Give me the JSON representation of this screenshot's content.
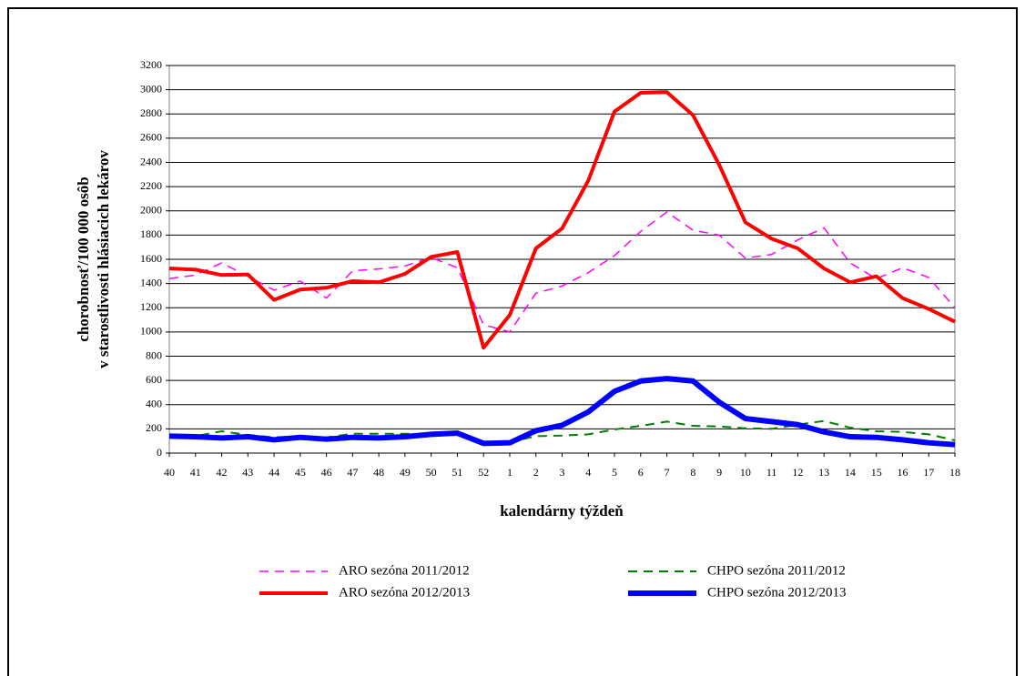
{
  "chart_data": {
    "type": "line",
    "xlabel": "kalendárny týždeň",
    "ylabel": [
      "chorobnosť/100 000 osôb",
      "v starostlivosti hlásiacich lekárov"
    ],
    "categories": [
      "40",
      "41",
      "42",
      "43",
      "44",
      "45",
      "46",
      "47",
      "48",
      "49",
      "50",
      "51",
      "52",
      "1",
      "2",
      "3",
      "4",
      "5",
      "6",
      "7",
      "8",
      "9",
      "10",
      "11",
      "12",
      "13",
      "14",
      "15",
      "16",
      "17",
      "18"
    ],
    "ylim": [
      0,
      3200
    ],
    "yticks": [
      0,
      200,
      400,
      600,
      800,
      1000,
      1200,
      1400,
      1600,
      1800,
      2000,
      2200,
      2400,
      2600,
      2800,
      3000,
      3200
    ],
    "grid": true,
    "series": [
      {
        "name": "ARO sezóna 2011/2012",
        "color": "#ff00ff",
        "style": "dashed",
        "values": [
          1440,
          1470,
          1570,
          1460,
          1345,
          1420,
          1280,
          1505,
          1520,
          1545,
          1615,
          1530,
          1060,
          1000,
          1320,
          1380,
          1490,
          1630,
          1830,
          1990,
          1840,
          1800,
          1610,
          1640,
          1760,
          1860,
          1570,
          1440,
          1530,
          1450,
          1200
        ]
      },
      {
        "name": "CHPO sezóna 2011/2012",
        "color": "#008000",
        "style": "dashed",
        "values": [
          130,
          140,
          180,
          150,
          130,
          140,
          130,
          160,
          160,
          160,
          150,
          150,
          90,
          90,
          140,
          145,
          155,
          195,
          225,
          260,
          225,
          220,
          205,
          200,
          235,
          265,
          210,
          180,
          175,
          155,
          105
        ]
      },
      {
        "name": "ARO sezóna 2012/2013",
        "color": "#ff0000",
        "style": "solid",
        "values": [
          1525,
          1515,
          1470,
          1475,
          1265,
          1350,
          1365,
          1420,
          1410,
          1480,
          1620,
          1660,
          870,
          1140,
          1690,
          1855,
          2250,
          2820,
          2975,
          2980,
          2790,
          2380,
          1905,
          1770,
          1690,
          1525,
          1410,
          1460,
          1280,
          1190,
          1085
        ]
      },
      {
        "name": "CHPO sezóna 2012/2013",
        "color": "#0000ff",
        "style": "solid",
        "values": [
          140,
          135,
          125,
          135,
          110,
          130,
          115,
          130,
          125,
          135,
          155,
          165,
          80,
          85,
          185,
          230,
          340,
          510,
          595,
          615,
          595,
          420,
          285,
          260,
          235,
          175,
          135,
          130,
          110,
          85,
          70
        ]
      }
    ]
  }
}
